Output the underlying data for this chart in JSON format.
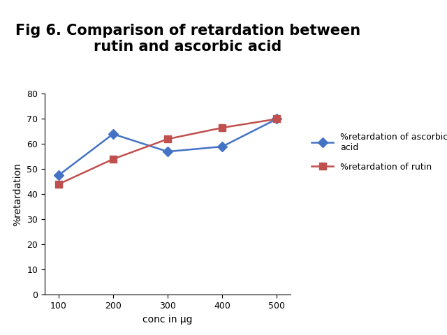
{
  "title": "Fig 6. Comparison of retardation between\nrutin and ascorbic acid",
  "xlabel": "conc in μg",
  "ylabel": "%retardation",
  "x": [
    100,
    200,
    300,
    400,
    500
  ],
  "ascorbic_acid_y": [
    47.5,
    64,
    57,
    59,
    70
  ],
  "rutin_y": [
    44,
    54,
    62,
    66.5,
    70
  ],
  "ascorbic_color": "#4472C4",
  "rutin_color": "#C0504D",
  "ylim": [
    0,
    80
  ],
  "yticks": [
    0,
    10,
    20,
    30,
    40,
    50,
    60,
    70,
    80
  ],
  "xticks": [
    100,
    200,
    300,
    400,
    500
  ],
  "legend_ascorbic": "%retardation of ascorbic\nacid",
  "legend_rutin": "%retardation of rutin",
  "title_fontsize": 15,
  "axis_label_fontsize": 10,
  "tick_fontsize": 9,
  "legend_fontsize": 9,
  "marker_size": 7,
  "line_width": 1.8,
  "background_color": "#ffffff"
}
